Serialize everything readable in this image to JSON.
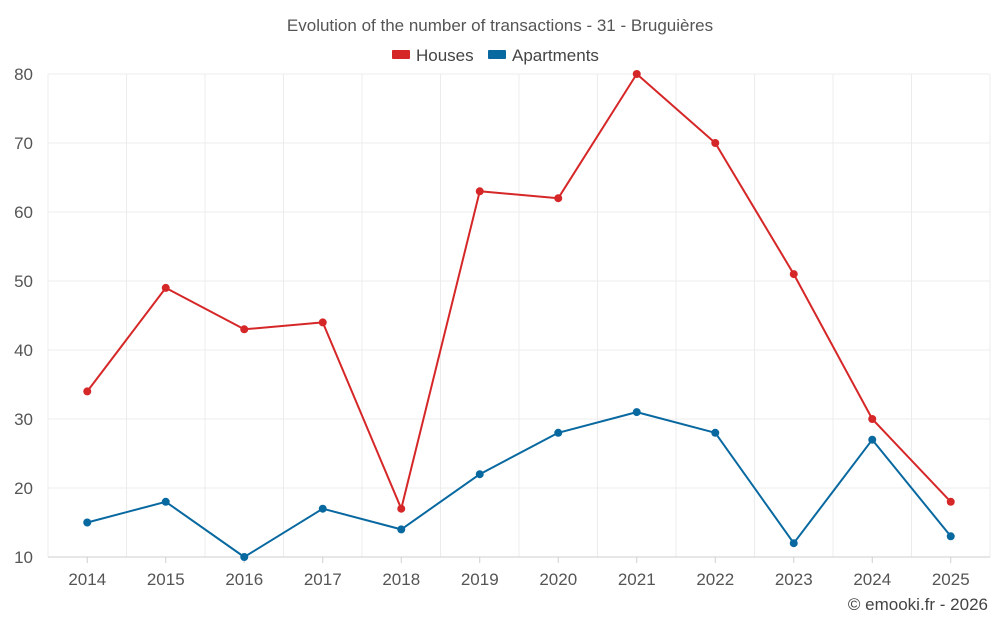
{
  "chart_data": {
    "type": "line",
    "title": "Evolution of the number of transactions - 31 - Bruguières",
    "xlabel": "",
    "ylabel": "",
    "categories": [
      "2014",
      "2015",
      "2016",
      "2017",
      "2018",
      "2019",
      "2020",
      "2021",
      "2022",
      "2023",
      "2024",
      "2025"
    ],
    "ylim": [
      10,
      80
    ],
    "yticks": [
      "10",
      "20",
      "30",
      "40",
      "50",
      "60",
      "70",
      "80"
    ],
    "grid": true,
    "legend_position": "top-center",
    "series": [
      {
        "name": "Houses",
        "color": "#d62728",
        "values": [
          34,
          49,
          43,
          44,
          17,
          63,
          62,
          80,
          70,
          51,
          30,
          18
        ]
      },
      {
        "name": "Apartments",
        "color": "#0868a0",
        "values": [
          15,
          18,
          10,
          17,
          14,
          22,
          28,
          31,
          28,
          12,
          27,
          13
        ]
      }
    ]
  },
  "credit": "© emooki.fr - 2026"
}
